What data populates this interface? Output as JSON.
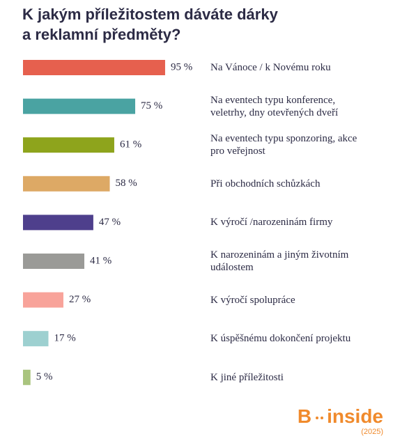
{
  "chart_data": {
    "type": "bar",
    "orientation": "horizontal",
    "title": "K jakým příležitostem dáváte dárky\na reklamní předměty?",
    "categories": [
      "Na Vánoce / k Novému roku",
      "Na eventech typu konference,\nveletrhy, dny otevřených dveří",
      "Na eventech typu sponzoring, akce\npro veřejnost",
      "Při obchodních schůzkách",
      "K výročí /narozeninám firmy",
      "K narozeninám a jiným životním\nudálostem",
      "K výročí spolupráce",
      "K úspěšnému dokončení projektu",
      "K jiné příležitosti"
    ],
    "values": [
      95,
      75,
      61,
      58,
      47,
      41,
      27,
      17,
      5
    ],
    "value_labels": [
      "95 %",
      "75 %",
      "61 %",
      "58 %",
      "47 %",
      "41 %",
      "27 %",
      "17 %",
      "5 %"
    ],
    "colors": [
      "#e6604e",
      "#4aa3a2",
      "#8ea41c",
      "#dda965",
      "#4e3f8c",
      "#9a9a97",
      "#f8a39a",
      "#9dd0d0",
      "#a9c47e"
    ]
  },
  "brand": {
    "left": "B",
    "right": "inside",
    "year": "(2025)"
  }
}
